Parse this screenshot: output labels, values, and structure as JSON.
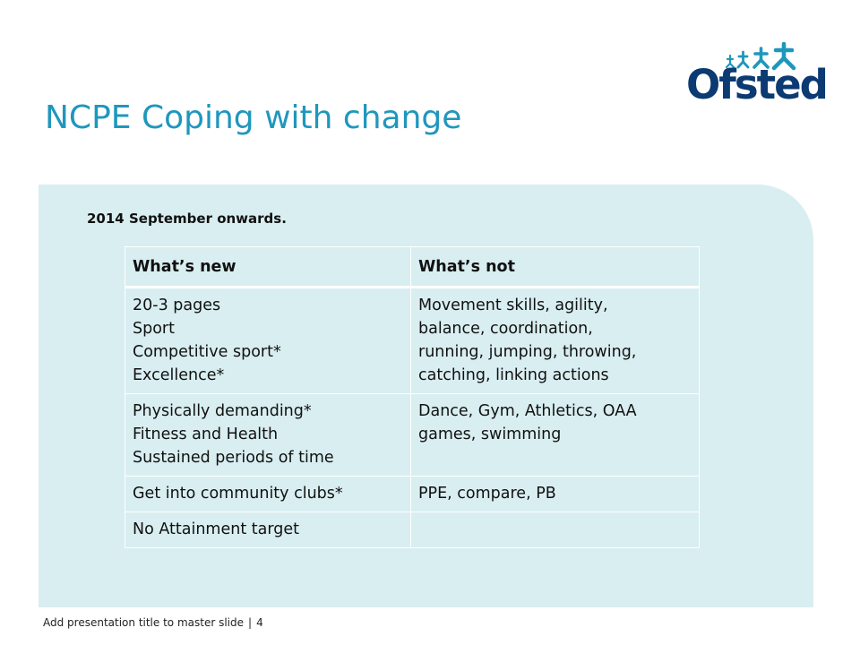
{
  "logo": {
    "text": "Ofsted",
    "icon": "people-stars-icon",
    "color": "#0c3a72",
    "star_color": "#1f97bd"
  },
  "title": "NCPE Coping with change",
  "subtitle": "2014 September onwards.",
  "table": {
    "headers": [
      "What’s new",
      "What’s not"
    ],
    "rows": [
      {
        "new": [
          "20-3 pages",
          "Sport",
          "Competitive sport*",
          "Excellence*"
        ],
        "not": [
          "Movement skills, agility,",
          "balance, coordination,",
          "running, jumping, throwing,",
          "catching, linking actions"
        ]
      },
      {
        "new": [
          "Physically demanding*",
          "Fitness and Health",
          "Sustained periods of time"
        ],
        "not": [
          "Dance, Gym, Athletics, OAA",
          "games, swimming"
        ]
      },
      {
        "new": [
          "Get into community clubs*"
        ],
        "not": [
          "PPE, compare, PB"
        ]
      },
      {
        "new": [
          "No Attainment target"
        ],
        "not": []
      }
    ]
  },
  "footer": {
    "text": "Add presentation title to master slide",
    "separator": "|",
    "page": "4"
  },
  "colors": {
    "accent": "#1f97bd",
    "panel": "#d9eef1",
    "brand": "#0c3a72"
  }
}
